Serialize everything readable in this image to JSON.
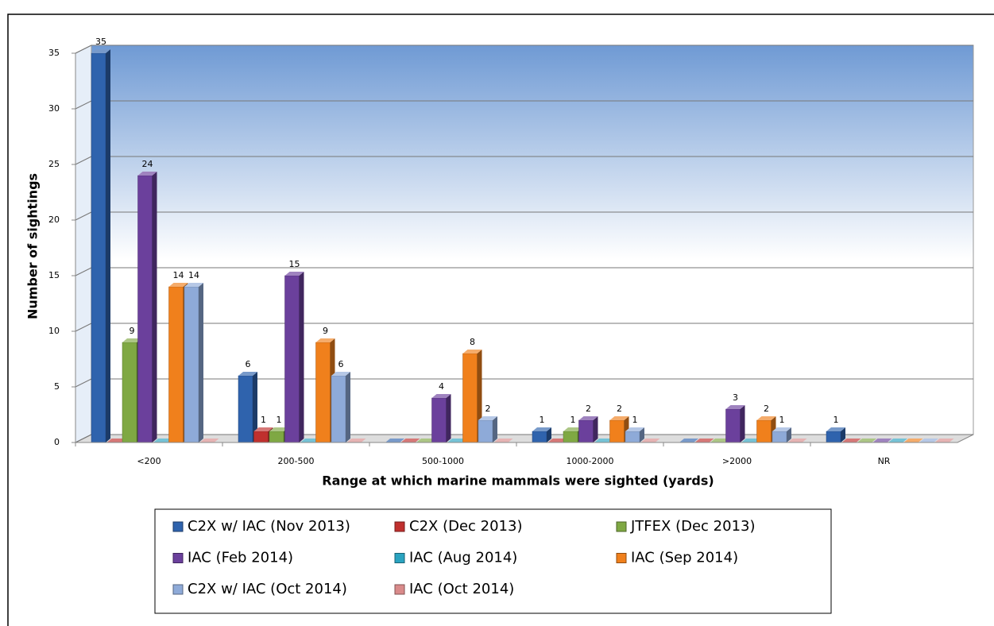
{
  "chart_data": {
    "type": "bar3d",
    "xlabel": "Range at which marine mammals were sighted (yards)",
    "ylabel": "Number of sightings",
    "categories": [
      "<200",
      "200-500",
      "500-1000",
      "1000-2000",
      ">2000",
      "NR"
    ],
    "series": [
      {
        "name": "C2X w/ IAC (Nov 2013)",
        "color": "#2f63ad",
        "values": [
          35,
          6,
          0,
          1,
          0,
          1
        ]
      },
      {
        "name": "C2X (Dec 2013)",
        "color": "#c0302e",
        "values": [
          0,
          1,
          0,
          0,
          0,
          0
        ]
      },
      {
        "name": "JTFEX (Dec 2013)",
        "color": "#7fa843",
        "values": [
          9,
          1,
          0,
          1,
          0,
          0
        ]
      },
      {
        "name": "IAC (Feb 2014)",
        "color": "#6b409c",
        "values": [
          24,
          15,
          4,
          2,
          3,
          0
        ]
      },
      {
        "name": "IAC (Aug 2014)",
        "color": "#2aa3c0",
        "values": [
          0,
          0,
          0,
          0,
          0,
          0
        ]
      },
      {
        "name": "IAC (Sep 2014)",
        "color": "#f0801c",
        "values": [
          14,
          9,
          8,
          2,
          2,
          0
        ]
      },
      {
        "name": "C2X w/ IAC (Oct 2014)",
        "color": "#8eaad8",
        "values": [
          14,
          6,
          2,
          1,
          1,
          0
        ]
      },
      {
        "name": "IAC (Oct 2014)",
        "color": "#d98a8a",
        "values": [
          0,
          0,
          0,
          0,
          0,
          0
        ]
      }
    ],
    "ylim": [
      0,
      35
    ],
    "yticks": [
      0,
      5,
      10,
      15,
      20,
      25,
      30,
      35
    ],
    "grid": true,
    "legend": "bottom"
  }
}
